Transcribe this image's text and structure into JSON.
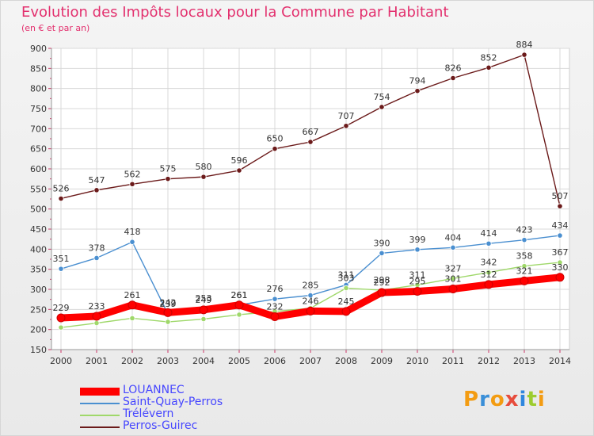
{
  "header": {
    "title": "Evolution des Impôts locaux pour la Commune par Habitant",
    "subtitle": "(en € et par an)"
  },
  "logo": {
    "letters": [
      "P",
      "r",
      "o",
      "x",
      "i",
      "t",
      "i"
    ],
    "colors": [
      "#f39c12",
      "#3a8fd8",
      "#f39c12",
      "#e74c3c",
      "#2e86de",
      "#9ccc2f",
      "#f39c12"
    ]
  },
  "chart_data": {
    "type": "line",
    "x": [
      2000,
      2001,
      2002,
      2003,
      2004,
      2005,
      2006,
      2007,
      2008,
      2009,
      2010,
      2011,
      2012,
      2013,
      2014
    ],
    "ylim": [
      150,
      900
    ],
    "yticks": [
      150,
      200,
      250,
      300,
      350,
      400,
      450,
      500,
      550,
      600,
      650,
      700,
      750,
      800,
      850,
      900
    ],
    "grid": true,
    "legend_position": "bottom-left",
    "series": [
      {
        "name": "Perros-Guirec",
        "color": "#6b1a1a",
        "values": [
          526,
          547,
          562,
          575,
          580,
          596,
          650,
          667,
          707,
          754,
          794,
          826,
          852,
          884,
          507
        ],
        "labels": [
          "526",
          "547",
          "562",
          "575",
          "580",
          "596",
          "650",
          "667",
          "707",
          "754",
          "794",
          "826",
          "852",
          "884",
          "507"
        ]
      },
      {
        "name": "Saint-Quay-Perros",
        "color": "#4a8fd0",
        "values": [
          351,
          378,
          418,
          239,
          253,
          261,
          276,
          285,
          311,
          390,
          399,
          404,
          414,
          423,
          434
        ],
        "labels": [
          "351",
          "378",
          "418",
          "239",
          "253",
          "261",
          "276",
          "285",
          "311",
          "390",
          "399",
          "404",
          "414",
          "423",
          "434"
        ]
      },
      {
        "name": "Trélévern",
        "color": "#9fd86a",
        "values": [
          205,
          216,
          228,
          219,
          226,
          237,
          245,
          253,
          303,
          298,
          311,
          327,
          342,
          358,
          367
        ],
        "labels": [
          "",
          "",
          "",
          "",
          "",
          "",
          "",
          "",
          "303",
          "298",
          "311",
          "327",
          "342",
          "358",
          "367"
        ]
      },
      {
        "name": "LOUANNEC",
        "color": "#ff0000",
        "values": [
          229,
          233,
          261,
          242,
          249,
          261,
          232,
          246,
          245,
          292,
          295,
          301,
          312,
          321,
          330
        ],
        "labels": [
          "229",
          "233",
          "261",
          "242",
          "249",
          "261",
          "232",
          "246",
          "245",
          "292",
          "295",
          "301",
          "312",
          "321",
          "330"
        ]
      }
    ],
    "legend": [
      {
        "name": "LOUANNEC",
        "color": "#ff0000",
        "width": 10
      },
      {
        "name": "Saint-Quay-Perros",
        "color": "#4a8fd0",
        "width": 2
      },
      {
        "name": "Trélévern",
        "color": "#9fd86a",
        "width": 2
      },
      {
        "name": "Perros-Guirec",
        "color": "#6b1a1a",
        "width": 2
      }
    ]
  }
}
